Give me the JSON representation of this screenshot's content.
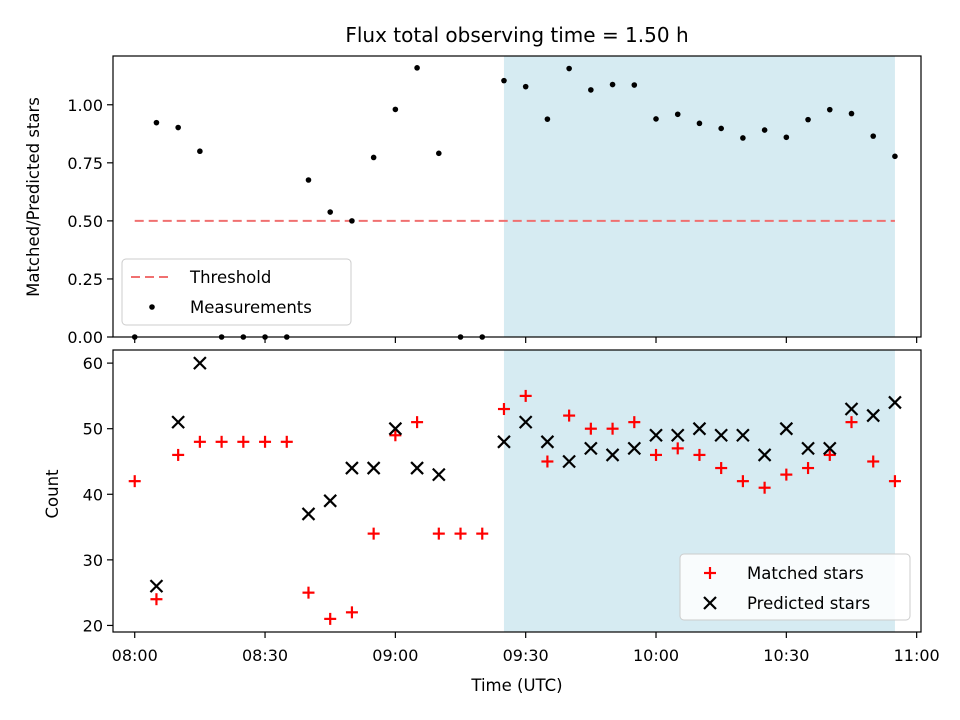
{
  "chart_data": [
    {
      "type": "scatter",
      "title": "Flux total observing time = 1.50 h",
      "ylabel": "Matched/Predicted stars",
      "ylim": [
        0,
        1.21
      ],
      "yticks": [
        "0.00",
        "0.25",
        "0.50",
        "0.75",
        "1.00"
      ],
      "shaded_span": [
        "09:25",
        "10:55"
      ],
      "shade_color": "#add8e6",
      "threshold": {
        "name": "Threshold",
        "value": 0.5,
        "x_range": [
          "08:00",
          "10:55"
        ],
        "color": "#f07070",
        "style": "dashed"
      },
      "series": [
        {
          "name": "Measurements",
          "color": "#000000",
          "marker": "dot",
          "points": [
            [
              "08:00",
              0.0
            ],
            [
              "08:05",
              0.923
            ],
            [
              "08:10",
              0.902
            ],
            [
              "08:15",
              0.8
            ],
            [
              "08:20",
              0.0
            ],
            [
              "08:25",
              0.0
            ],
            [
              "08:30",
              0.0
            ],
            [
              "08:35",
              0.0
            ],
            [
              "08:40",
              0.676
            ],
            [
              "08:45",
              0.538
            ],
            [
              "08:50",
              0.5
            ],
            [
              "08:55",
              0.773
            ],
            [
              "09:00",
              0.98
            ],
            [
              "09:05",
              1.159
            ],
            [
              "09:10",
              0.791
            ],
            [
              "09:15",
              0.0
            ],
            [
              "09:20",
              0.0
            ],
            [
              "09:25",
              1.104
            ],
            [
              "09:30",
              1.078
            ],
            [
              "09:35",
              0.938
            ],
            [
              "09:40",
              1.156
            ],
            [
              "09:45",
              1.064
            ],
            [
              "09:50",
              1.087
            ],
            [
              "09:55",
              1.085
            ],
            [
              "10:00",
              0.939
            ],
            [
              "10:05",
              0.959
            ],
            [
              "10:10",
              0.92
            ],
            [
              "10:15",
              0.898
            ],
            [
              "10:20",
              0.857
            ],
            [
              "10:25",
              0.891
            ],
            [
              "10:30",
              0.86
            ],
            [
              "10:35",
              0.936
            ],
            [
              "10:40",
              0.979
            ],
            [
              "10:45",
              0.962
            ],
            [
              "10:50",
              0.865
            ],
            [
              "10:55",
              0.778
            ]
          ]
        }
      ],
      "legend": {
        "position": "lower-left",
        "entries": [
          "Threshold",
          "Measurements"
        ]
      }
    },
    {
      "type": "scatter",
      "xlabel": "Time (UTC)",
      "ylabel": "Count",
      "ylim": [
        19,
        62
      ],
      "yticks": [
        "20",
        "30",
        "40",
        "50",
        "60"
      ],
      "xticks": [
        "08:00",
        "08:30",
        "09:00",
        "09:30",
        "10:00",
        "10:30",
        "11:00"
      ],
      "xlim": [
        "07:55",
        "11:01"
      ],
      "shaded_span": [
        "09:25",
        "10:55"
      ],
      "shade_color": "#add8e6",
      "series": [
        {
          "name": "Matched stars",
          "color": "#ff0000",
          "marker": "plus",
          "points": [
            [
              "08:00",
              42
            ],
            [
              "08:05",
              24
            ],
            [
              "08:10",
              46
            ],
            [
              "08:15",
              48
            ],
            [
              "08:20",
              48
            ],
            [
              "08:25",
              48
            ],
            [
              "08:30",
              48
            ],
            [
              "08:35",
              48
            ],
            [
              "08:40",
              25
            ],
            [
              "08:45",
              21
            ],
            [
              "08:50",
              22
            ],
            [
              "08:55",
              34
            ],
            [
              "09:00",
              49
            ],
            [
              "09:05",
              51
            ],
            [
              "09:10",
              34
            ],
            [
              "09:15",
              34
            ],
            [
              "09:20",
              34
            ],
            [
              "09:25",
              53
            ],
            [
              "09:30",
              55
            ],
            [
              "09:35",
              45
            ],
            [
              "09:40",
              52
            ],
            [
              "09:45",
              50
            ],
            [
              "09:50",
              50
            ],
            [
              "09:55",
              51
            ],
            [
              "10:00",
              46
            ],
            [
              "10:05",
              47
            ],
            [
              "10:10",
              46
            ],
            [
              "10:15",
              44
            ],
            [
              "10:20",
              42
            ],
            [
              "10:25",
              41
            ],
            [
              "10:30",
              43
            ],
            [
              "10:35",
              44
            ],
            [
              "10:40",
              46
            ],
            [
              "10:45",
              51
            ],
            [
              "10:50",
              45
            ],
            [
              "10:55",
              42
            ]
          ]
        },
        {
          "name": "Predicted stars",
          "color": "#000000",
          "marker": "x",
          "points": [
            [
              "08:05",
              26
            ],
            [
              "08:10",
              51
            ],
            [
              "08:15",
              60
            ],
            [
              "08:40",
              37
            ],
            [
              "08:45",
              39
            ],
            [
              "08:50",
              44
            ],
            [
              "08:55",
              44
            ],
            [
              "09:00",
              50
            ],
            [
              "09:05",
              44
            ],
            [
              "09:10",
              43
            ],
            [
              "09:25",
              48
            ],
            [
              "09:30",
              51
            ],
            [
              "09:35",
              48
            ],
            [
              "09:40",
              45
            ],
            [
              "09:45",
              47
            ],
            [
              "09:50",
              46
            ],
            [
              "09:55",
              47
            ],
            [
              "10:00",
              49
            ],
            [
              "10:05",
              49
            ],
            [
              "10:10",
              50
            ],
            [
              "10:15",
              49
            ],
            [
              "10:20",
              49
            ],
            [
              "10:25",
              46
            ],
            [
              "10:30",
              50
            ],
            [
              "10:35",
              47
            ],
            [
              "10:40",
              47
            ],
            [
              "10:45",
              53
            ],
            [
              "10:50",
              52
            ],
            [
              "10:55",
              54
            ]
          ]
        }
      ],
      "legend": {
        "position": "lower-right",
        "entries": [
          "Matched stars",
          "Predicted stars"
        ]
      }
    }
  ]
}
